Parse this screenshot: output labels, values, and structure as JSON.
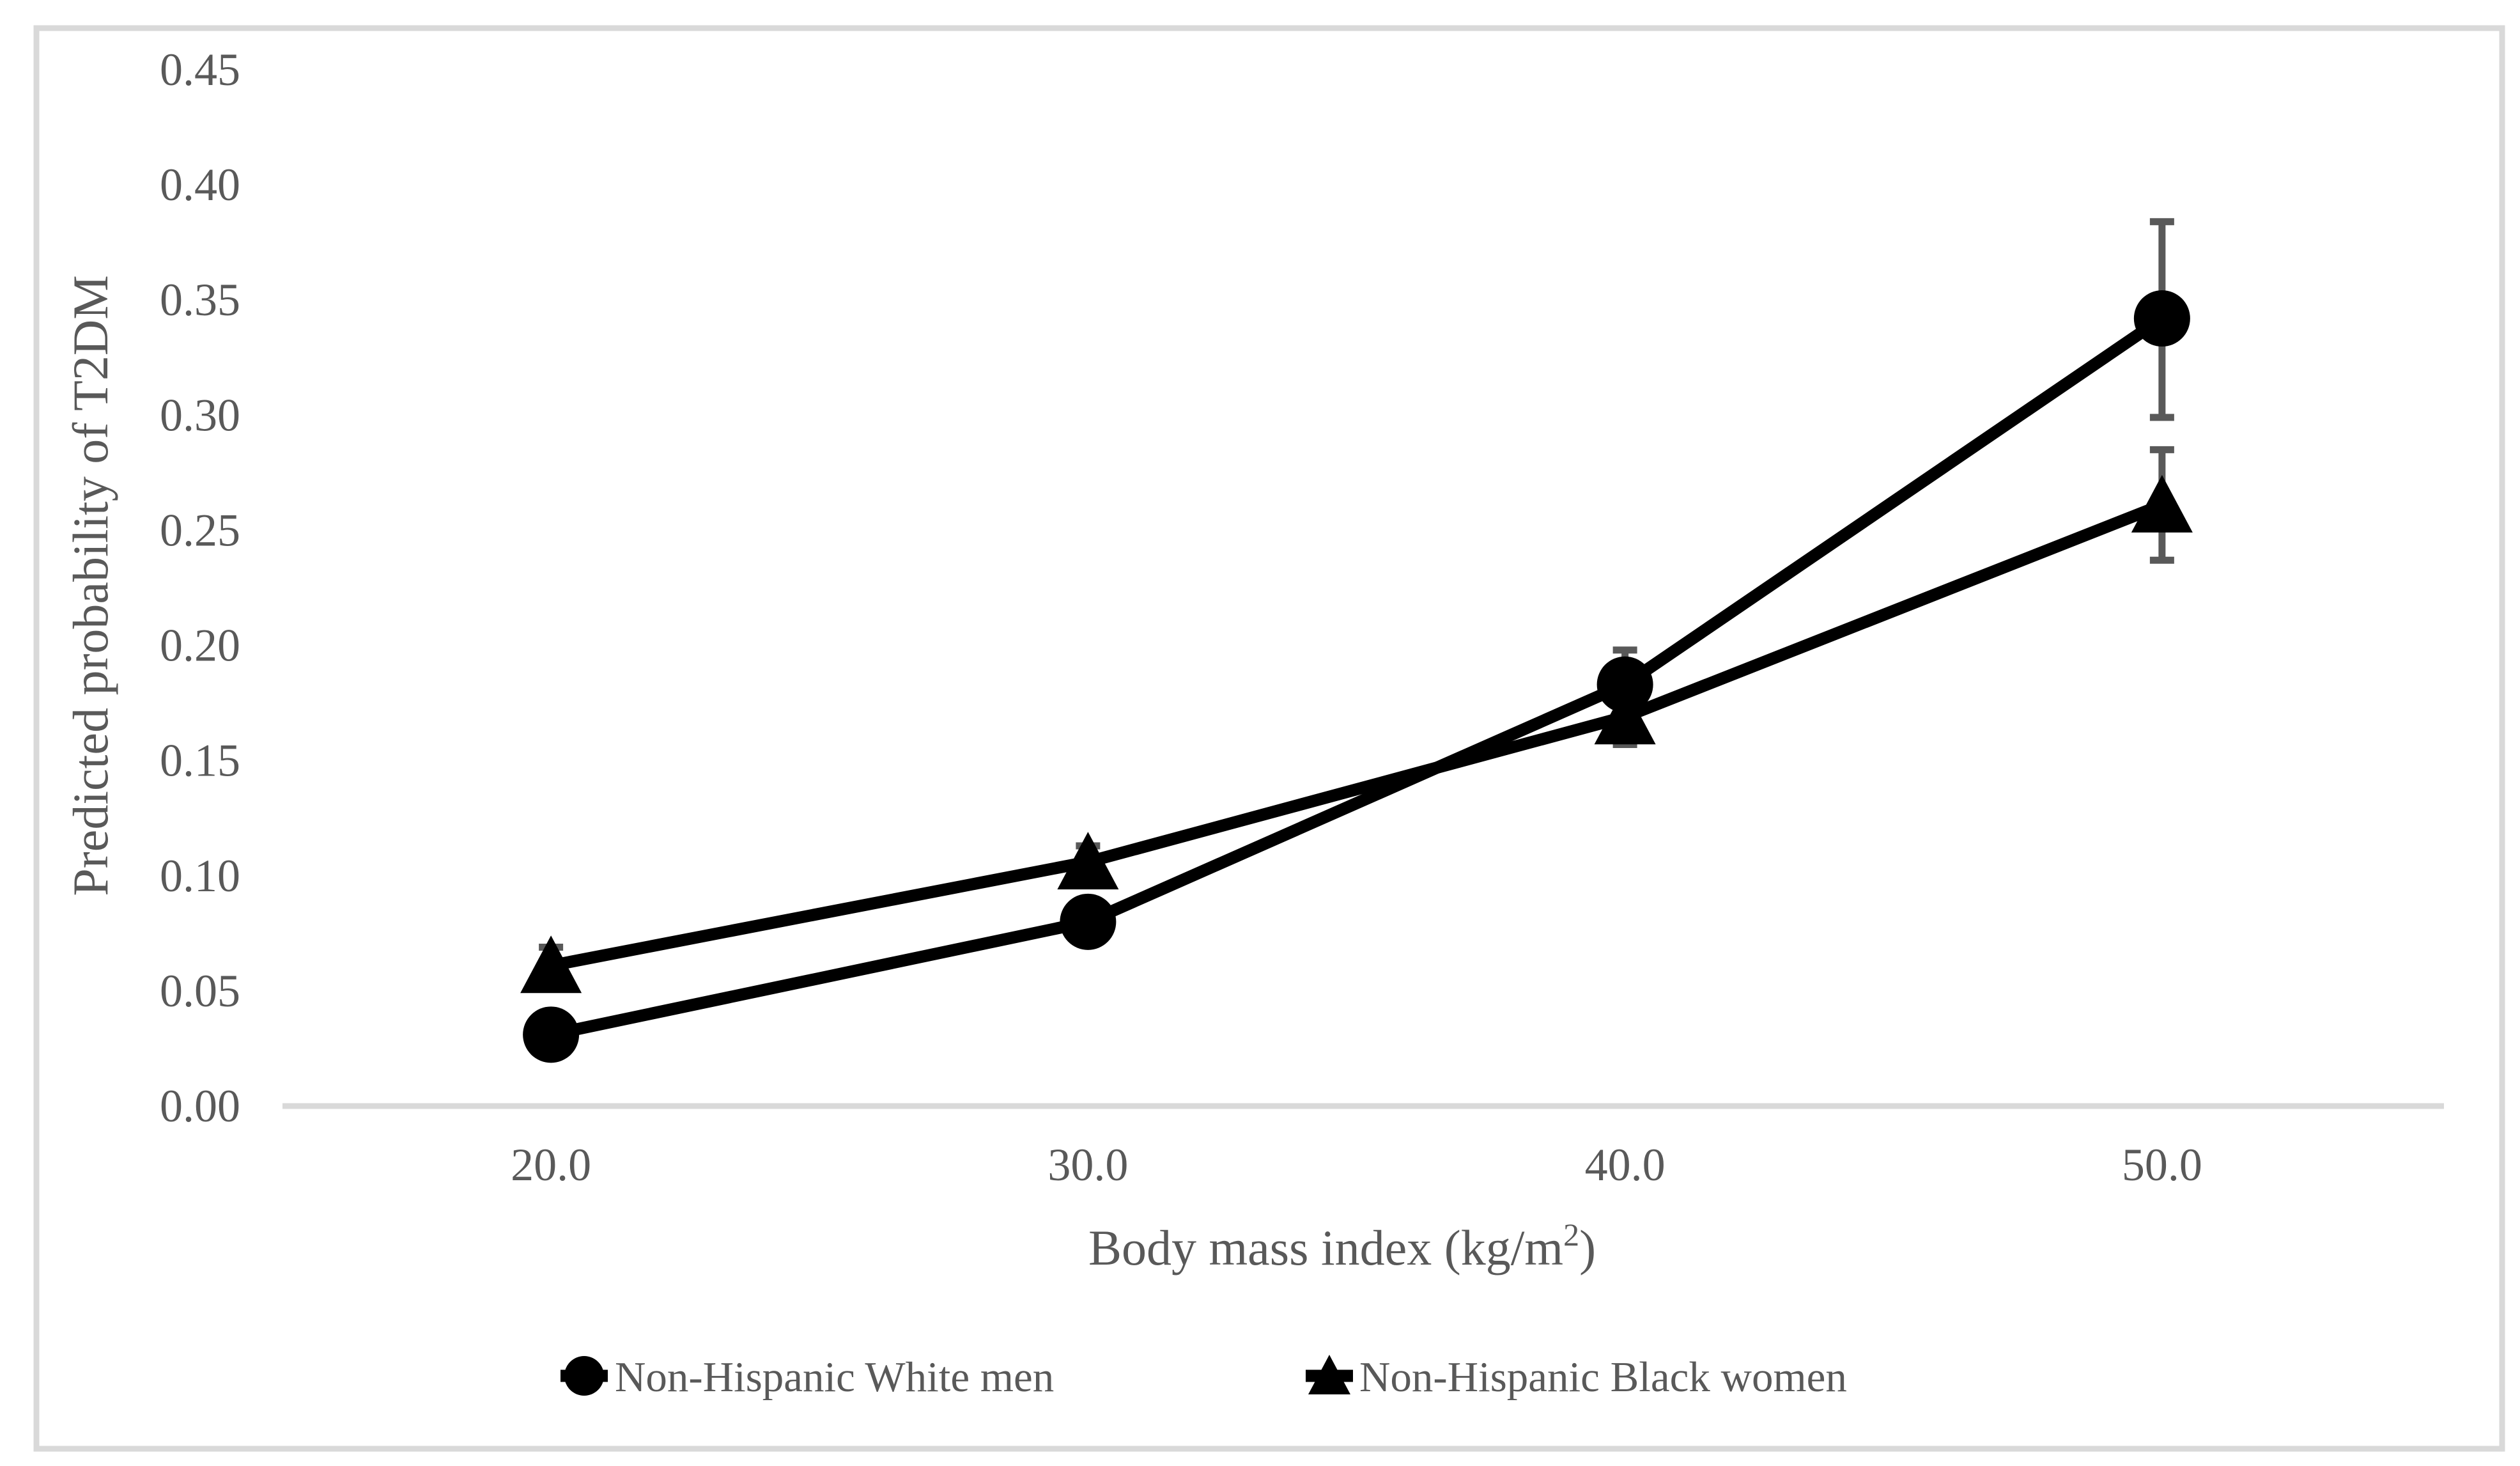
{
  "figure": {
    "background": "#ffffff",
    "border_color": "#d9d9d9",
    "axis_line_color": "#d9d9d9",
    "text_color": "#595959",
    "series_color": "#000000",
    "error_bar_color": "#595959"
  },
  "chart_data": {
    "type": "line",
    "title": "",
    "ylabel": "Predicted probability of T2DM",
    "xlabel_parts": {
      "pre": "Body mass index (kg/m",
      "sup": "2",
      "post": ")"
    },
    "x": [
      20.0,
      30.0,
      40.0,
      50.0
    ],
    "x_tick_labels": [
      "20.0",
      "30.0",
      "40.0",
      "50.0"
    ],
    "y_tick_labels": [
      "0.00",
      "0.05",
      "0.10",
      "0.15",
      "0.20",
      "0.25",
      "0.30",
      "0.35",
      "0.40",
      "0.45"
    ],
    "xlim": [
      15.0,
      55.25
    ],
    "ylim": [
      0.0,
      0.45
    ],
    "grid": false,
    "legend_position": "bottom",
    "series": [
      {
        "name": "Non-Hispanic White men",
        "marker": "circle",
        "values": [
          0.031,
          0.08,
          0.183,
          0.342
        ],
        "ci_low": [
          null,
          null,
          0.169,
          0.299
        ],
        "ci_high": [
          null,
          null,
          0.198,
          0.384
        ]
      },
      {
        "name": "Non-Hispanic Black women",
        "marker": "triangle",
        "values": [
          0.061,
          0.106,
          0.169,
          0.261
        ],
        "ci_low": [
          0.054,
          0.099,
          0.157,
          0.237
        ],
        "ci_high": [
          0.069,
          0.113,
          0.181,
          0.285
        ]
      }
    ]
  }
}
